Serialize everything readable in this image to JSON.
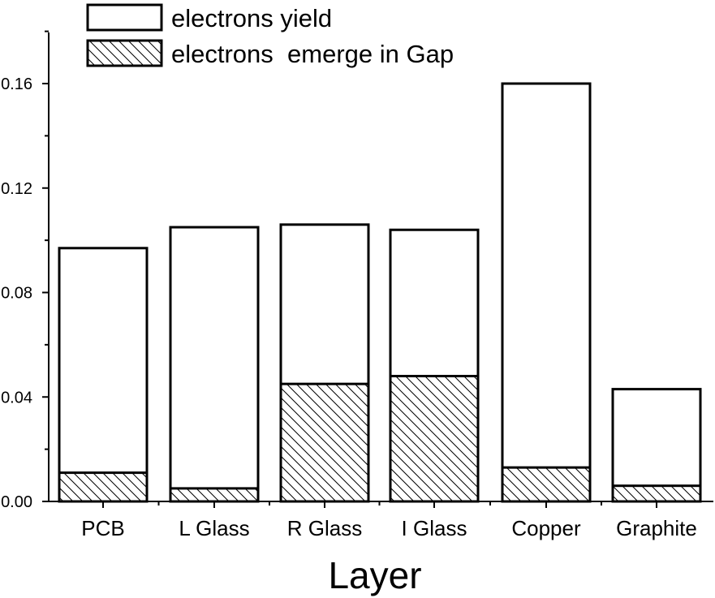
{
  "chart_data": {
    "type": "bar",
    "title": "",
    "xlabel": "Layer",
    "ylabel": "",
    "ylim": [
      0,
      0.18
    ],
    "yticks": [
      "0.00",
      "0.04",
      "0.08",
      "0.12",
      "0.16"
    ],
    "grid": false,
    "legend_position": "top-left",
    "categories": [
      "PCB",
      "L Glass",
      "R Glass",
      "I Glass",
      "Copper",
      "Graphite"
    ],
    "series": [
      {
        "name": "electrons yield",
        "fill": "none",
        "values": [
          0.097,
          0.105,
          0.106,
          0.104,
          0.16,
          0.043
        ]
      },
      {
        "name": "electrons  emerge in Gap",
        "fill": "hatched",
        "values": [
          0.011,
          0.005,
          0.045,
          0.048,
          0.013,
          0.006
        ]
      }
    ],
    "colors": {
      "stroke": "#000000",
      "background": "#ffffff"
    }
  }
}
